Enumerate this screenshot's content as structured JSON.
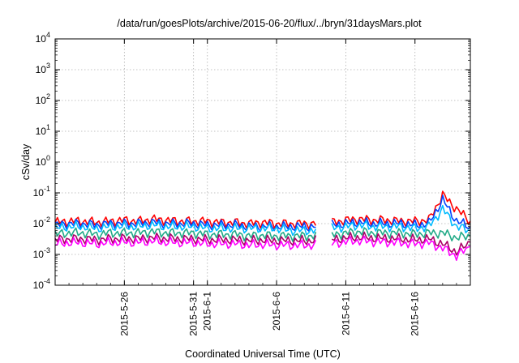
{
  "chart_data": {
    "type": "line",
    "title": "/data/run/goesPlots/archive/2015-06-20/flux/../bryn/31daysMars.plot",
    "xlabel": "Coordinated Universal Time (UTC)",
    "ylabel": "cSv/day",
    "yscale": "log",
    "ylim": [
      0.0001,
      10000
    ],
    "xlim": [
      "2015-05-21T00:00",
      "2015-06-20T00:00"
    ],
    "grid": true,
    "x_ticks": [
      "2015-5-26",
      "2015-5-31",
      "2015-6-1",
      "2015-6-6",
      "2015-6-11",
      "2015-6-16"
    ],
    "x_tick_dates": [
      "2015-05-26",
      "2015-05-31",
      "2015-06-01",
      "2015-06-06",
      "2015-06-11",
      "2015-06-16"
    ],
    "y_ticks": [
      {
        "base": "10",
        "exp": "-4"
      },
      {
        "base": "10",
        "exp": "-3"
      },
      {
        "base": "10",
        "exp": "-2"
      },
      {
        "base": "10",
        "exp": "-1"
      },
      {
        "base": "10",
        "exp": "0"
      },
      {
        "base": "10",
        "exp": "1"
      },
      {
        "base": "10",
        "exp": "2"
      },
      {
        "base": "10",
        "exp": "3"
      },
      {
        "base": "10",
        "exp": "4"
      }
    ],
    "x": [
      "2015-05-21",
      "2015-05-22",
      "2015-05-23",
      "2015-05-24",
      "2015-05-25",
      "2015-05-26",
      "2015-05-27",
      "2015-05-28",
      "2015-05-29",
      "2015-05-30",
      "2015-05-31",
      "2015-06-01",
      "2015-06-02",
      "2015-06-03",
      "2015-06-04",
      "2015-06-05",
      "2015-06-06",
      "2015-06-07",
      "2015-06-08",
      "2015-06-09",
      "2015-06-10",
      "2015-06-11",
      "2015-06-12",
      "2015-06-13",
      "2015-06-14",
      "2015-06-15",
      "2015-06-16",
      "2015-06-17",
      "2015-06-18",
      "2015-06-19",
      "2015-06-20"
    ],
    "gap": {
      "start": "2015-06-09",
      "end": "2015-06-10"
    },
    "series": [
      {
        "color": "#ff0000",
        "values": [
          0.011,
          0.012,
          0.012,
          0.011,
          0.012,
          0.013,
          0.012,
          0.014,
          0.013,
          0.012,
          0.012,
          0.012,
          0.011,
          0.011,
          0.01,
          0.011,
          0.01,
          0.01,
          0.01,
          0.01,
          0.011,
          0.013,
          0.014,
          0.013,
          0.013,
          0.012,
          0.012,
          0.013,
          0.085,
          0.03,
          0.012
        ]
      },
      {
        "color": "#0044ff",
        "values": [
          0.009,
          0.01,
          0.01,
          0.009,
          0.01,
          0.01,
          0.01,
          0.011,
          0.01,
          0.01,
          0.01,
          0.009,
          0.009,
          0.009,
          0.008,
          0.008,
          0.008,
          0.008,
          0.008,
          0.008,
          0.009,
          0.01,
          0.011,
          0.01,
          0.01,
          0.01,
          0.009,
          0.01,
          0.06,
          0.012,
          0.008
        ]
      },
      {
        "color": "#00bbff",
        "values": [
          0.007,
          0.008,
          0.008,
          0.007,
          0.008,
          0.008,
          0.008,
          0.009,
          0.008,
          0.008,
          0.008,
          0.007,
          0.007,
          0.007,
          0.007,
          0.007,
          0.007,
          0.006,
          0.006,
          0.006,
          0.007,
          0.008,
          0.009,
          0.008,
          0.008,
          0.008,
          0.007,
          0.008,
          0.03,
          0.008,
          0.006
        ]
      },
      {
        "color": "#22aa88",
        "values": [
          0.0045,
          0.005,
          0.005,
          0.0045,
          0.005,
          0.005,
          0.005,
          0.0055,
          0.005,
          0.005,
          0.005,
          0.0045,
          0.0045,
          0.0045,
          0.004,
          0.0042,
          0.004,
          0.004,
          0.004,
          0.004,
          0.0042,
          0.005,
          0.0055,
          0.005,
          0.005,
          0.005,
          0.0045,
          0.005,
          0.005,
          0.0035,
          0.004
        ]
      },
      {
        "color": "#aa0066",
        "values": [
          0.003,
          0.0032,
          0.0032,
          0.003,
          0.0032,
          0.0033,
          0.0032,
          0.0035,
          0.0033,
          0.0032,
          0.0032,
          0.003,
          0.003,
          0.003,
          0.0028,
          0.0029,
          0.0028,
          0.0028,
          0.0028,
          0.0028,
          0.003,
          0.0034,
          0.0036,
          0.0034,
          0.0033,
          0.0032,
          0.003,
          0.0032,
          0.0022,
          0.0012,
          0.0025
        ]
      },
      {
        "color": "#ff00ff",
        "values": [
          0.0022,
          0.0024,
          0.0024,
          0.0022,
          0.0024,
          0.0025,
          0.0024,
          0.0027,
          0.0025,
          0.0024,
          0.0024,
          0.0022,
          0.0022,
          0.0022,
          0.002,
          0.0021,
          0.002,
          0.002,
          0.002,
          0.002,
          0.0022,
          0.0026,
          0.0028,
          0.0026,
          0.0025,
          0.0024,
          0.0022,
          0.0024,
          0.0016,
          0.0009,
          0.0018
        ]
      }
    ]
  }
}
